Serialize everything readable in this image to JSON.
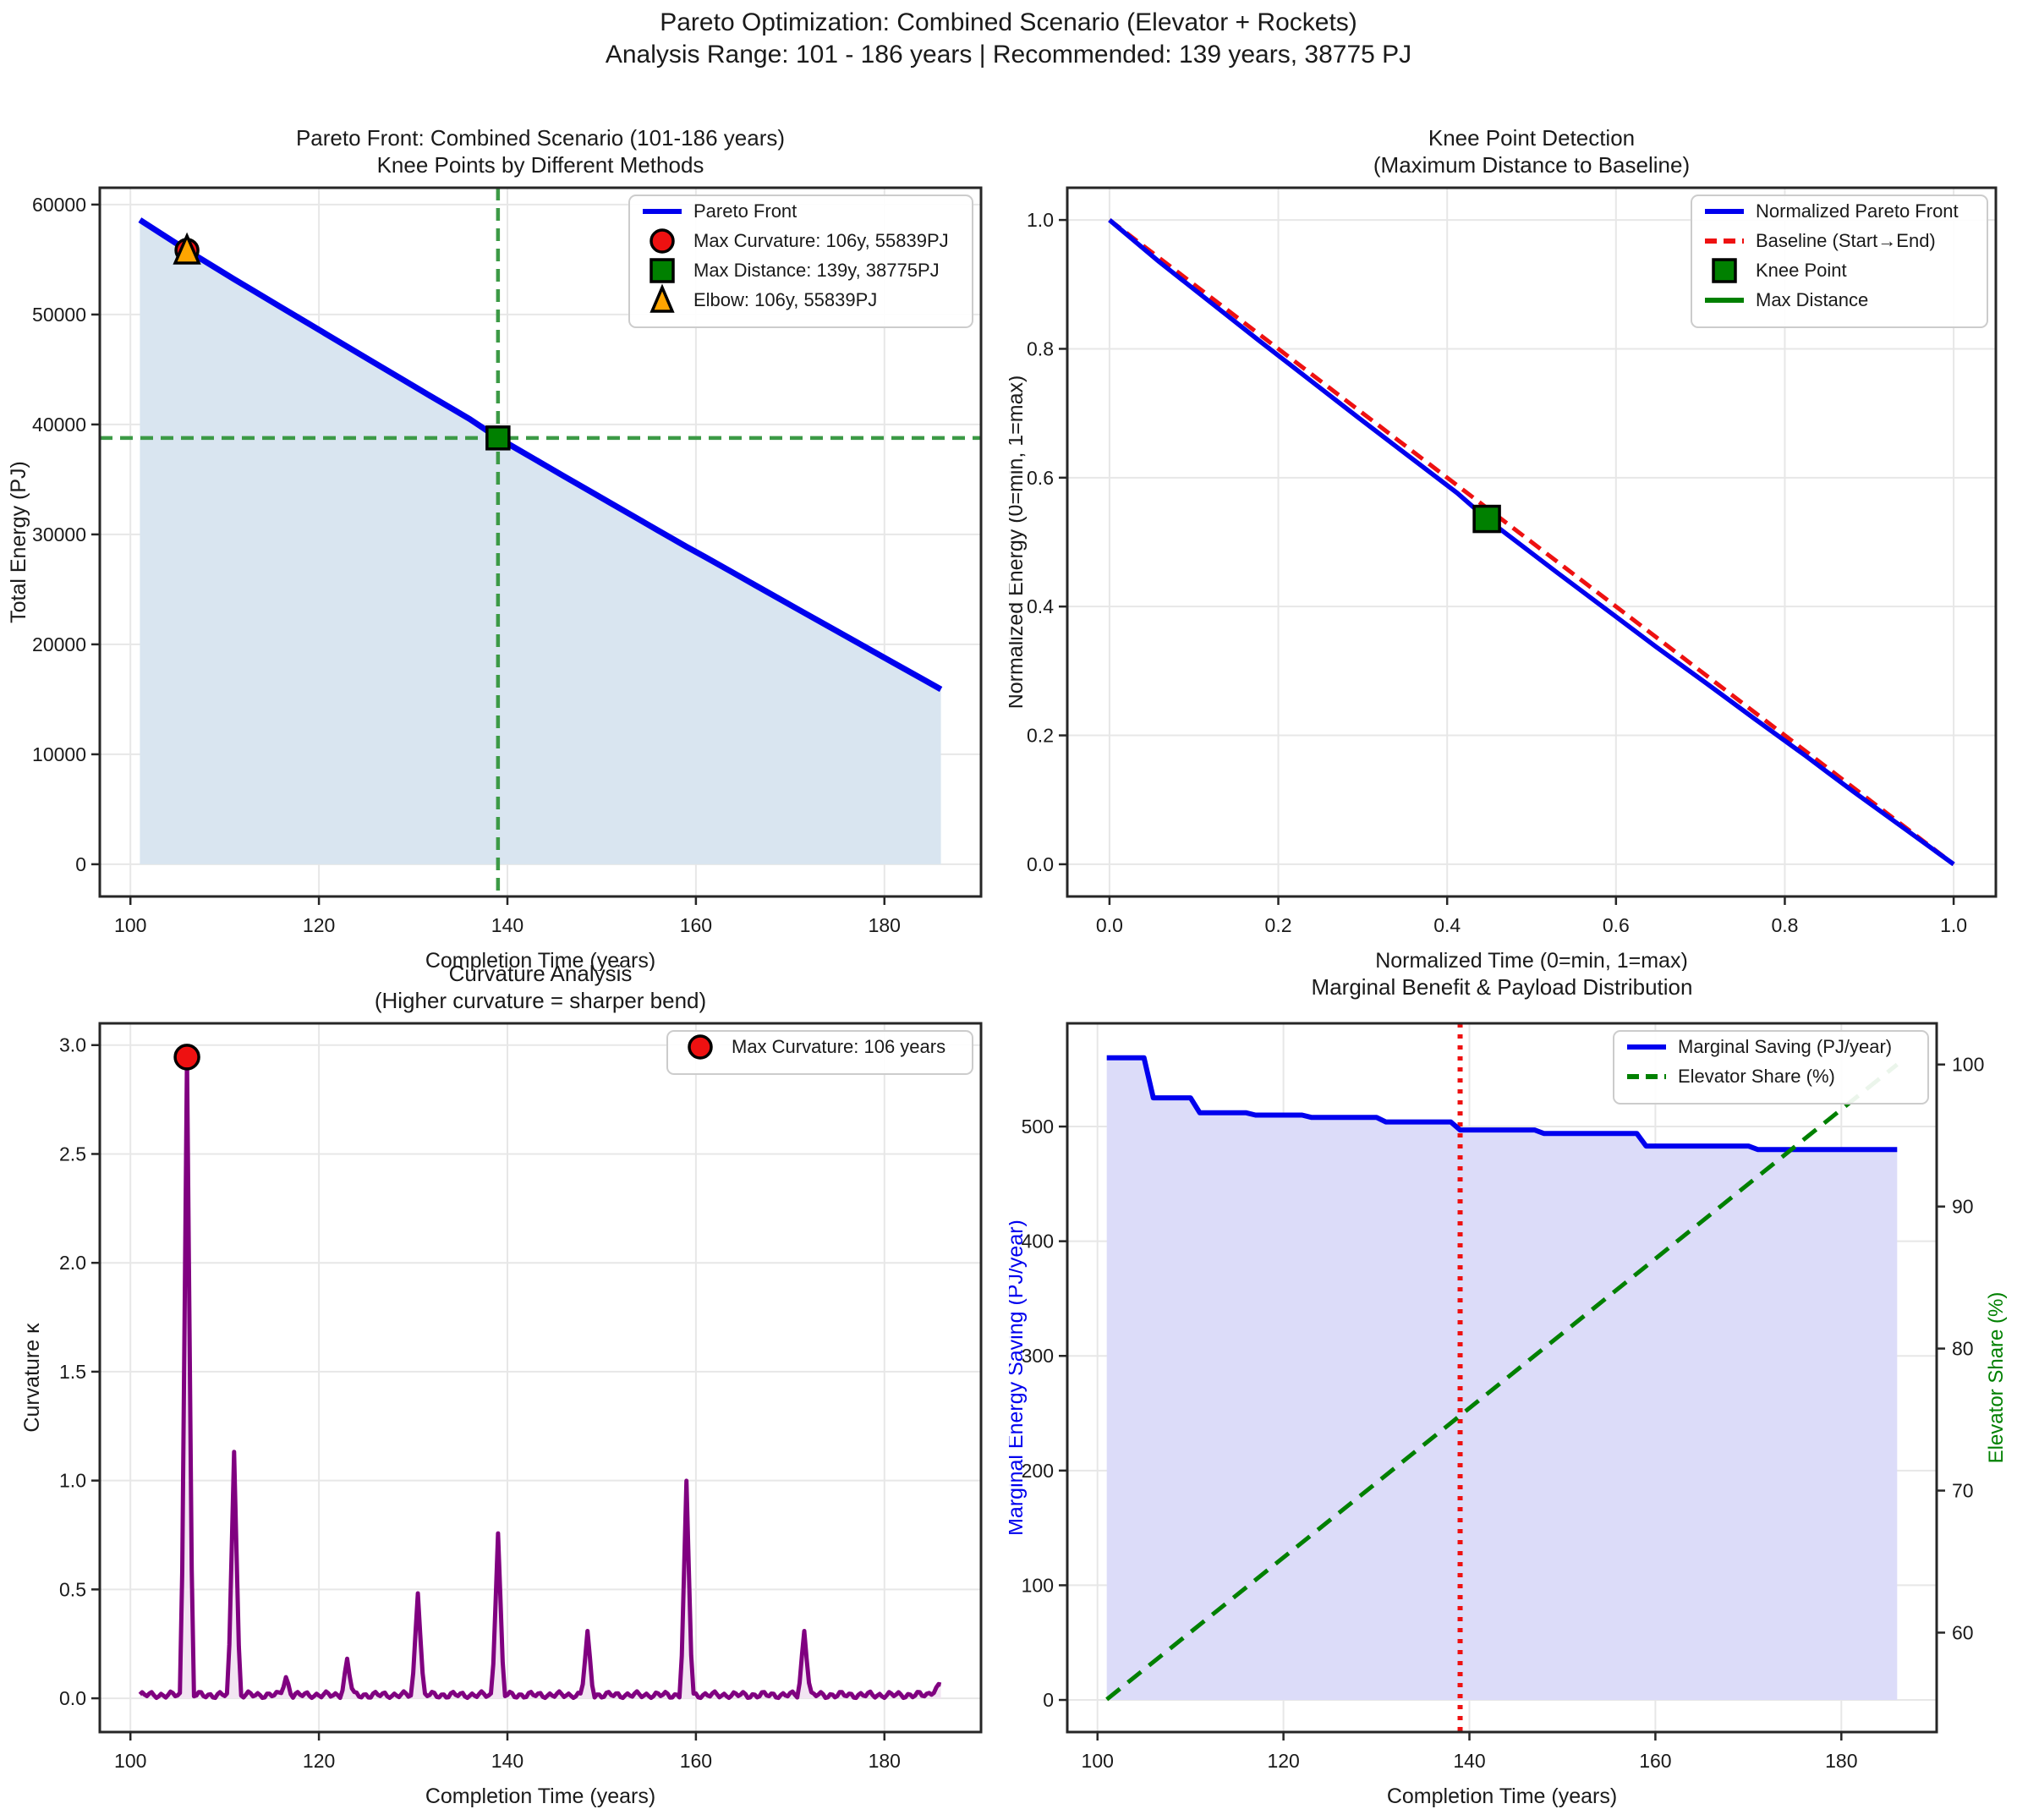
{
  "suptitle": {
    "line1": "Pareto Optimization: Combined Scenario (Elevator + Rockets)",
    "line2": "Analysis Range: 101 - 186 years | Recommended: 139 years, 38775 PJ"
  },
  "colors": {
    "blue": "#0000ee",
    "red": "#ee1111",
    "green": "#008000",
    "soft_green": "#3c9a46",
    "orange": "#ffa500",
    "purple": "#800080",
    "pareto_fill": "#d9e5f0",
    "marginal_fill": "#dcdcf9",
    "curvature_fill": "#f2e5f2",
    "grid": "#e7e7e7",
    "spine": "#262626"
  },
  "chart_data": [
    {
      "id": "pareto-front",
      "type": "line",
      "title": [
        "Pareto Front: Combined Scenario (101-186 years)",
        "Knee Points by Different Methods"
      ],
      "xlabel": "Completion Time (years)",
      "ylabel": "Total Energy (PJ)",
      "xlim": [
        96.75,
        190.25
      ],
      "ylim": [
        -2930,
        61530
      ],
      "xticks": [
        100,
        120,
        140,
        160,
        180
      ],
      "xtick_labels": [
        "100",
        "120",
        "140",
        "160",
        "180"
      ],
      "yticks": [
        0,
        10000,
        20000,
        30000,
        40000,
        50000,
        60000
      ],
      "ytick_labels": [
        "0",
        "10000",
        "20000",
        "30000",
        "40000",
        "50000",
        "60000"
      ],
      "series": [
        {
          "name": "Pareto Front",
          "color": "#0000ee",
          "width": 7,
          "fill": "#d9e5f0",
          "fill_to": 0,
          "points": [
            [
              101,
              58600
            ],
            [
              103,
              57500
            ],
            [
              105,
              56400
            ],
            [
              106,
              55839
            ],
            [
              108,
              54790
            ],
            [
              111,
              53214
            ],
            [
              113,
              52190
            ],
            [
              116,
              50654
            ],
            [
              119,
              49122
            ],
            [
              121,
              48099
            ],
            [
              124,
              46572
            ],
            [
              126,
              45554
            ],
            [
              129,
              44027
            ],
            [
              131,
              43009
            ],
            [
              134,
              41497
            ],
            [
              136,
              40489
            ],
            [
              139,
              38775
            ],
            [
              141,
              37781
            ],
            [
              144,
              36290
            ],
            [
              146,
              35296
            ],
            [
              149,
              33814
            ],
            [
              151,
              32826
            ],
            [
              154,
              31344
            ],
            [
              156,
              30356
            ],
            [
              159,
              28886
            ],
            [
              161,
              27941
            ],
            [
              164,
              26492
            ],
            [
              166,
              25526
            ],
            [
              169,
              24077
            ],
            [
              171,
              23111
            ],
            [
              174,
              21671
            ],
            [
              176,
              20711
            ],
            [
              179,
              19271
            ],
            [
              181,
              18311
            ],
            [
              184,
              16871
            ],
            [
              186,
              15911
            ]
          ]
        }
      ],
      "vlines": [
        {
          "x": 139,
          "color": "#3c9a46",
          "width": 4.5,
          "dash": "15 9"
        }
      ],
      "hlines": [
        {
          "y": 38775,
          "color": "#3c9a46",
          "width": 4.5,
          "dash": "15 9"
        }
      ],
      "markers": [
        {
          "shape": "circle",
          "x": 106,
          "y": 55839,
          "color": "#ee1111",
          "size": 13
        },
        {
          "shape": "square",
          "x": 139,
          "y": 38775,
          "color": "#008000",
          "size": 13
        },
        {
          "shape": "triangle",
          "x": 106,
          "y": 55839,
          "color": "#ffa500",
          "size": 15
        }
      ],
      "legend": [
        {
          "swatch": "line",
          "color": "#0000ee",
          "label": "Pareto Front"
        },
        {
          "swatch": "circle",
          "color": "#ee1111",
          "label": "Max Curvature: 106y, 55839PJ"
        },
        {
          "swatch": "square",
          "color": "#008000",
          "label": "Max Distance: 139y, 38775PJ"
        },
        {
          "swatch": "triangle",
          "color": "#ffa500",
          "label": "Elbow: 106y, 55839PJ"
        }
      ]
    },
    {
      "id": "knee-detect",
      "type": "line",
      "title": [
        "Knee Point Detection",
        "(Maximum Distance to Baseline)"
      ],
      "xlabel": "Normalized Time (0=min, 1=max)",
      "ylabel": "Normalized Energy (0=min, 1=max)",
      "xlim": [
        -0.05,
        1.05
      ],
      "ylim": [
        -0.05,
        1.05
      ],
      "xticks": [
        0.0,
        0.2,
        0.4,
        0.6,
        0.8,
        1.0
      ],
      "xtick_labels": [
        "0.0",
        "0.2",
        "0.4",
        "0.6",
        "0.8",
        "1.0"
      ],
      "yticks": [
        0.0,
        0.2,
        0.4,
        0.6,
        0.8,
        1.0
      ],
      "ytick_labels": [
        "0.0",
        "0.2",
        "0.4",
        "0.6",
        "0.8",
        "1.0"
      ],
      "series": [
        {
          "name": "Max Distance seg",
          "color": "#008000",
          "width": 5,
          "points": [
            [
              0.447,
              0.536
            ],
            [
              0.458,
              0.553
            ]
          ]
        },
        {
          "name": "Baseline (Start→End)",
          "color": "#ee1111",
          "width": 5,
          "dash": "16 9",
          "points": [
            [
              0,
              1
            ],
            [
              1,
              0
            ]
          ]
        },
        {
          "name": "Normalized Pareto Front",
          "color": "#0000ee",
          "width": 5.5,
          "points": [
            [
              0,
              1
            ],
            [
              0.059,
              0.935
            ],
            [
              0.118,
              0.874
            ],
            [
              0.176,
              0.814
            ],
            [
              0.235,
              0.754
            ],
            [
              0.294,
              0.694
            ],
            [
              0.353,
              0.635
            ],
            [
              0.412,
              0.576
            ],
            [
              0.447,
              0.536
            ],
            [
              0.471,
              0.512
            ],
            [
              0.529,
              0.454
            ],
            [
              0.588,
              0.396
            ],
            [
              0.647,
              0.338
            ],
            [
              0.706,
              0.282
            ],
            [
              0.765,
              0.225
            ],
            [
              0.824,
              0.169
            ],
            [
              0.882,
              0.112
            ],
            [
              0.941,
              0.056
            ],
            [
              1.0,
              0.0
            ]
          ]
        }
      ],
      "vlines": [],
      "hlines": [],
      "markers": [
        {
          "shape": "square",
          "x": 0.447,
          "y": 0.536,
          "color": "#008000",
          "size": 15
        }
      ],
      "legend": [
        {
          "swatch": "line",
          "color": "#0000ee",
          "label": "Normalized Pareto Front"
        },
        {
          "swatch": "dashline",
          "color": "#ee1111",
          "label": "Baseline (Start→End)"
        },
        {
          "swatch": "square",
          "color": "#008000",
          "label": "Knee Point"
        },
        {
          "swatch": "line",
          "color": "#008000",
          "label": "Max Distance"
        }
      ]
    },
    {
      "id": "curvature",
      "type": "line",
      "title": [
        "Curvature Analysis",
        "(Higher curvature = sharper bend)"
      ],
      "xlabel": "Completion Time (years)",
      "ylabel": "Curvature κ",
      "xlim": [
        96.75,
        190.25
      ],
      "ylim": [
        -0.155,
        3.1
      ],
      "xticks": [
        100,
        120,
        140,
        160,
        180
      ],
      "xtick_labels": [
        "100",
        "120",
        "140",
        "160",
        "180"
      ],
      "yticks": [
        0.0,
        0.5,
        1.0,
        1.5,
        2.0,
        2.5,
        3.0
      ],
      "ytick_labels": [
        "0.0",
        "0.5",
        "1.0",
        "1.5",
        "2.0",
        "2.5",
        "3.0"
      ],
      "curvature_gen": {
        "x_range": [
          101,
          186
        ],
        "baseline_level": 0.015,
        "peaks": [
          [
            106,
            2.945
          ],
          [
            111,
            1.13
          ],
          [
            116.5,
            0.08
          ],
          [
            123,
            0.16
          ],
          [
            130.5,
            0.48
          ],
          [
            139,
            0.75
          ],
          [
            148.5,
            0.28
          ],
          [
            159,
            0.97
          ],
          [
            171.5,
            0.3
          ]
        ],
        "end_rise": 0.05,
        "color": "#800080",
        "width": 5,
        "fill": "#f2e5f2"
      },
      "series": [],
      "vlines": [],
      "hlines": [],
      "markers": [
        {
          "shape": "circle",
          "x": 106,
          "y": 2.945,
          "color": "#ee1111",
          "size": 14
        }
      ],
      "legend": [
        {
          "swatch": "circle",
          "color": "#ee1111",
          "label": "Max Curvature: 106 years"
        }
      ]
    },
    {
      "id": "marginal",
      "type": "line",
      "title": [
        "Marginal Benefit & Payload Distribution"
      ],
      "xlabel": "Completion Time (years)",
      "ylabel": "Marginal Energy Saving (PJ/year)",
      "ylabel_color": "#0000ee",
      "xlim": [
        96.75,
        190.25
      ],
      "ylim": [
        -28,
        590
      ],
      "xticks": [
        100,
        120,
        140,
        160,
        180
      ],
      "xtick_labels": [
        "100",
        "120",
        "140",
        "160",
        "180"
      ],
      "yticks": [
        0,
        100,
        200,
        300,
        400,
        500
      ],
      "ytick_labels": [
        "0",
        "100",
        "200",
        "300",
        "400",
        "500"
      ],
      "right_axis": {
        "label": "Elevator Share (%)",
        "color": "#008000",
        "lim": [
          53.0,
          102.9
        ],
        "ticks": [
          60,
          70,
          80,
          90,
          100
        ],
        "tick_labels": [
          "60",
          "70",
          "80",
          "90",
          "100"
        ]
      },
      "series": [
        {
          "name": "Marginal Saving (PJ/year)",
          "color": "#0000ee",
          "width": 6,
          "fill": "#dcdcf9",
          "fill_to": 0,
          "points": [
            [
              101,
              560
            ],
            [
              105,
              560
            ],
            [
              106,
              525
            ],
            [
              110,
              525
            ],
            [
              111,
              512
            ],
            [
              116,
              512
            ],
            [
              117,
              510
            ],
            [
              122,
              510
            ],
            [
              123,
              508
            ],
            [
              130,
              508
            ],
            [
              131,
              504
            ],
            [
              138,
              504
            ],
            [
              139,
              497
            ],
            [
              147,
              497
            ],
            [
              148,
              494
            ],
            [
              158,
              494
            ],
            [
              159,
              483
            ],
            [
              170,
              483
            ],
            [
              171,
              480
            ],
            [
              186,
              480
            ]
          ]
        },
        {
          "name": "Elevator Share (%)",
          "color": "#008000",
          "width": 5,
          "dash": "20 12",
          "axis": "right",
          "points": [
            [
              101,
              55.3
            ],
            [
              186,
              100
            ]
          ]
        }
      ],
      "vlines": [
        {
          "x": 139,
          "color": "#ee1111",
          "width": 6,
          "dash": "5 8"
        }
      ],
      "hlines": [],
      "markers": [],
      "legend": [
        {
          "swatch": "line",
          "color": "#0000ee",
          "label": "Marginal Saving (PJ/year)"
        },
        {
          "swatch": "dashline",
          "color": "#008000",
          "label": "Elevator Share (%)"
        }
      ]
    }
  ]
}
